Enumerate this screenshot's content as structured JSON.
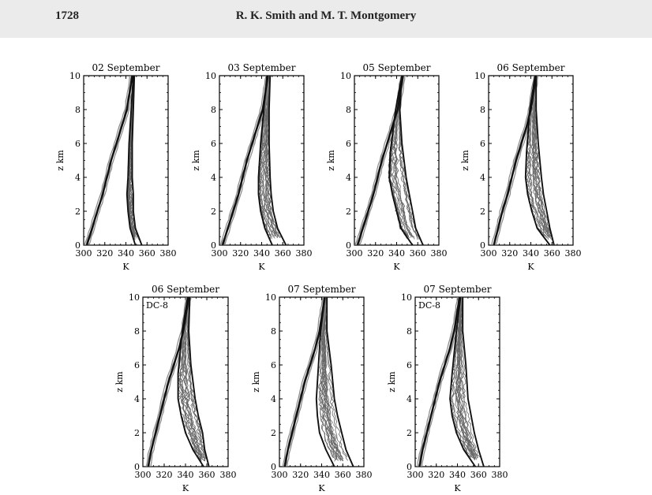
{
  "header": {
    "page_number": "1728",
    "running_title": "R. K. Smith and M. T. Montgomery"
  },
  "chart_data": [
    {
      "type": "line",
      "title": "02 September",
      "note": "",
      "xlabel": "K",
      "ylabel": "z km",
      "xlim": [
        300,
        380
      ],
      "ylim": [
        0,
        10
      ],
      "xticks": [
        "300",
        "320",
        "340",
        "360",
        "380"
      ],
      "yticks": [
        "0",
        "2",
        "4",
        "6",
        "8",
        "10"
      ],
      "series": [
        {
          "x": [
            303,
            308,
            313,
            318,
            322,
            326,
            331,
            336,
            341,
            346
          ],
          "y": [
            0,
            1,
            2,
            3,
            4,
            5,
            6,
            7,
            8,
            10
          ]
        },
        {
          "x": [
            349,
            344,
            342,
            341,
            342,
            343,
            345,
            347
          ],
          "y": [
            0,
            1,
            2,
            3,
            4,
            6,
            8,
            10
          ]
        },
        {
          "x": [
            355,
            349,
            347,
            347,
            346,
            346,
            347,
            348
          ],
          "y": [
            0,
            1,
            2,
            3,
            4,
            6,
            8,
            10
          ]
        }
      ],
      "spread": 6
    },
    {
      "type": "line",
      "title": "03 September",
      "note": "",
      "xlabel": "K",
      "ylabel": "z km",
      "xlim": [
        300,
        380
      ],
      "ylim": [
        0,
        10
      ],
      "xticks": [
        "300",
        "320",
        "340",
        "360",
        "380"
      ],
      "yticks": [
        "0",
        "2",
        "4",
        "6",
        "8",
        "10"
      ],
      "series": [
        {
          "x": [
            303,
            308,
            313,
            318,
            322,
            326,
            331,
            336,
            341,
            346
          ],
          "y": [
            0,
            1,
            2,
            3,
            4,
            5,
            6,
            7,
            8,
            10
          ]
        },
        {
          "x": [
            350,
            343,
            339,
            337,
            337,
            339,
            342,
            345
          ],
          "y": [
            0,
            1,
            2,
            3,
            4,
            6,
            8,
            10
          ]
        },
        {
          "x": [
            363,
            355,
            351,
            349,
            348,
            347,
            347,
            348
          ],
          "y": [
            0,
            1,
            2,
            3,
            4,
            6,
            8,
            10
          ]
        }
      ],
      "spread": 7
    },
    {
      "type": "line",
      "title": "05 September",
      "note": "",
      "xlabel": "K",
      "ylabel": "z km",
      "xlim": [
        300,
        380
      ],
      "ylim": [
        0,
        10
      ],
      "xticks": [
        "300",
        "320",
        "340",
        "360",
        "380"
      ],
      "yticks": [
        "0",
        "2",
        "4",
        "6",
        "8",
        "10"
      ],
      "series": [
        {
          "x": [
            303,
            308,
            313,
            318,
            322,
            326,
            331,
            336,
            341,
            346
          ],
          "y": [
            0,
            1,
            2,
            3,
            4,
            5,
            6,
            7,
            8,
            10
          ]
        },
        {
          "x": [
            355,
            344,
            340,
            336,
            333,
            334,
            339,
            345
          ],
          "y": [
            0,
            1,
            2,
            3,
            4,
            5.5,
            8,
            10
          ]
        },
        {
          "x": [
            365,
            358,
            355,
            352,
            349,
            345,
            343,
            345
          ],
          "y": [
            0,
            1,
            2,
            3,
            4,
            6,
            8,
            10
          ]
        }
      ],
      "spread": 8
    },
    {
      "type": "line",
      "title": "06 September",
      "note": "",
      "xlabel": "K",
      "ylabel": "z km",
      "xlim": [
        300,
        380
      ],
      "ylim": [
        0,
        10
      ],
      "xticks": [
        "300",
        "320",
        "340",
        "360",
        "380"
      ],
      "yticks": [
        "0",
        "2",
        "4",
        "6",
        "8",
        "10"
      ],
      "series": [
        {
          "x": [
            305,
            309,
            313,
            318,
            322,
            326,
            331,
            336,
            340,
            345
          ],
          "y": [
            0,
            1,
            2,
            3,
            4,
            5,
            6,
            7,
            8,
            10
          ]
        },
        {
          "x": [
            358,
            346,
            341,
            337,
            335,
            336,
            339,
            344
          ],
          "y": [
            0,
            1,
            2,
            3,
            4,
            5.5,
            8,
            10
          ]
        },
        {
          "x": [
            362,
            358,
            355,
            352,
            350,
            347,
            345,
            345
          ],
          "y": [
            0,
            1,
            2,
            3,
            4,
            6,
            8,
            10
          ]
        }
      ],
      "spread": 8
    },
    {
      "type": "line",
      "title": "06 September",
      "note": "DC-8",
      "xlabel": "K",
      "ylabel": "z km",
      "xlim": [
        300,
        380
      ],
      "ylim": [
        0,
        10
      ],
      "xticks": [
        "300",
        "320",
        "340",
        "360",
        "380"
      ],
      "yticks": [
        "0",
        "2",
        "4",
        "6",
        "8",
        "10"
      ],
      "series": [
        {
          "x": [
            305,
            308,
            312,
            316,
            320,
            324,
            329,
            334,
            338,
            343
          ],
          "y": [
            0,
            1,
            2,
            3,
            4,
            5,
            6,
            7,
            8,
            10
          ]
        },
        {
          "x": [
            357,
            347,
            340,
            336,
            333,
            333,
            337,
            342
          ],
          "y": [
            0,
            1,
            2,
            3,
            4,
            5.5,
            8,
            10
          ]
        },
        {
          "x": [
            362,
            358,
            356,
            352,
            349,
            345,
            343,
            344
          ],
          "y": [
            0,
            1,
            2,
            3,
            4,
            6,
            8,
            10
          ]
        }
      ],
      "spread": 9
    },
    {
      "type": "line",
      "title": "07 September",
      "note": "",
      "xlabel": "K",
      "ylabel": "z km",
      "xlim": [
        300,
        380
      ],
      "ylim": [
        0,
        10
      ],
      "xticks": [
        "300",
        "320",
        "340",
        "360",
        "380"
      ],
      "yticks": [
        "0",
        "2",
        "4",
        "6",
        "8",
        "10"
      ],
      "series": [
        {
          "x": [
            305,
            308,
            312,
            316,
            320,
            324,
            329,
            334,
            338,
            343
          ],
          "y": [
            0,
            1,
            2,
            3,
            4,
            5,
            6,
            7,
            8,
            10
          ]
        },
        {
          "x": [
            352,
            344,
            338,
            336,
            335,
            337,
            339,
            343
          ],
          "y": [
            0,
            1,
            2,
            3,
            4,
            6,
            8,
            10
          ]
        },
        {
          "x": [
            370,
            363,
            359,
            355,
            352,
            349,
            345,
            345
          ],
          "y": [
            0,
            1,
            2,
            3,
            4,
            6,
            8,
            10
          ]
        }
      ],
      "spread": 8
    },
    {
      "type": "line",
      "title": "07 September",
      "note": "DC-8",
      "xlabel": "K",
      "ylabel": "z km",
      "xlim": [
        300,
        380
      ],
      "ylim": [
        0,
        10
      ],
      "xticks": [
        "300",
        "320",
        "340",
        "360",
        "380"
      ],
      "yticks": [
        "0",
        "2",
        "4",
        "6",
        "8",
        "10"
      ],
      "series": [
        {
          "x": [
            304,
            307,
            311,
            315,
            319,
            323,
            328,
            333,
            337,
            342
          ],
          "y": [
            0,
            1,
            2,
            3,
            4,
            5,
            6,
            7,
            8,
            10
          ]
        },
        {
          "x": [
            357,
            346,
            339,
            335,
            333,
            335,
            339,
            343
          ],
          "y": [
            0,
            1,
            2,
            3,
            4,
            5.5,
            8,
            10
          ]
        },
        {
          "x": [
            365,
            360,
            356,
            353,
            350,
            348,
            345,
            345
          ],
          "y": [
            0,
            1,
            2,
            3,
            4,
            6,
            8,
            10
          ]
        }
      ],
      "spread": 8
    }
  ]
}
